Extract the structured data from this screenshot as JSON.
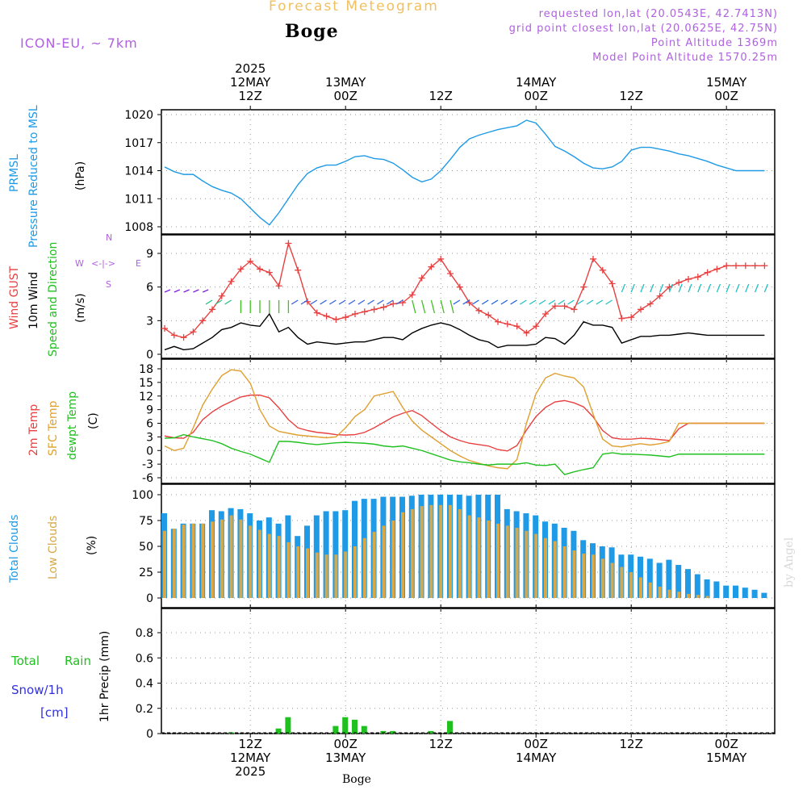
{
  "header": {
    "title": "Forecast Meteogram",
    "location": "Boge",
    "model": "ICON-EU, ~ 7km",
    "requested": "requested lon,lat (20.0543E, 42.7413N)",
    "grid_point": "grid point closest lon,lat (20.0625E, 42.75N)",
    "point_altitude": "Point Altitude 1369m",
    "model_altitude": "Model Point Altitude 1570.25m"
  },
  "time_axis": {
    "top_ticks": [
      {
        "lines": [
          "2025",
          "12MAY",
          "12Z"
        ]
      },
      {
        "lines": [
          "13MAY",
          "00Z"
        ]
      },
      {
        "lines": [
          "12Z"
        ]
      },
      {
        "lines": [
          "14MAY",
          "00Z"
        ]
      },
      {
        "lines": [
          "12Z"
        ]
      },
      {
        "lines": [
          "15MAY",
          "00Z"
        ]
      }
    ],
    "bottom_ticks": [
      {
        "lines": [
          "12Z",
          "12MAY",
          "2025"
        ]
      },
      {
        "lines": [
          "00Z",
          "13MAY"
        ]
      },
      {
        "lines": [
          "12Z"
        ]
      },
      {
        "lines": [
          "00Z",
          "14MAY"
        ]
      },
      {
        "lines": [
          "12Z"
        ]
      },
      {
        "lines": [
          "00Z",
          "15MAY"
        ]
      }
    ],
    "footer_label": "Boge"
  },
  "panel_labels": {
    "pressure": [
      "PRMSL",
      "Pressure Reduced to MSL",
      "(hPa)"
    ],
    "wind": [
      "Wind GUST",
      "10m Wind",
      "Speed and Direction",
      "(m/s)"
    ],
    "compass": {
      "w": "W",
      "e": "E",
      "n": "N",
      "s": "S",
      "arrow": "<-|->"
    },
    "temp": [
      "2m Temp",
      "SFC Temp",
      "dewpt Temp",
      "(C)"
    ],
    "clouds": [
      "Total Clouds",
      "Low Clouds",
      "(%)"
    ],
    "precip": [
      "1hr Precip (mm)"
    ],
    "precip_legend": [
      "Total",
      "Rain",
      "Snow/1h",
      "[cm]"
    ]
  },
  "watermark": "by Angel",
  "colors": {
    "pressure": "#1e9ae6",
    "gust": "#e84040",
    "wind10m": "#000000",
    "temp2m": "#e84040",
    "sfc": "#e0a030",
    "dewpt": "#20c020",
    "total_clouds": "#1e9ae6",
    "low_clouds": "#d8a848",
    "rain": "#20c020",
    "snow": "#3030e0",
    "model": "#b060e0",
    "title": "#f0c060",
    "grid": "#999999"
  },
  "chart_data": [
    {
      "type": "line",
      "panel": "pressure",
      "ylim": [
        1008,
        1020
      ],
      "yticks": [
        1008,
        1011,
        1014,
        1017,
        1020
      ],
      "x_hours": [
        0,
        1,
        2,
        3,
        4,
        5,
        6,
        7,
        8,
        9,
        10,
        11,
        12,
        13,
        14,
        15,
        16,
        17,
        18,
        19,
        20,
        21,
        22,
        23,
        24,
        25,
        26,
        27,
        28,
        29,
        30,
        31,
        32,
        33,
        34,
        35,
        36,
        37,
        38,
        39,
        40,
        41,
        42,
        43,
        44,
        45,
        46,
        47,
        48,
        49,
        50,
        51,
        52,
        53,
        54,
        55,
        56,
        57,
        58,
        59,
        60,
        61,
        62,
        63,
        64
      ],
      "series": [
        {
          "values": [
            1014.4,
            1013.9,
            1013.6,
            1013.6,
            1012.9,
            1012.3,
            1011.9,
            1011.6,
            1011.0,
            1010.0,
            1009.0,
            1008.2,
            1009.5,
            1011.0,
            1012.5,
            1013.7,
            1014.3,
            1014.6,
            1014.6,
            1015.0,
            1015.5,
            1015.6,
            1015.3,
            1015.2,
            1014.8,
            1014.1,
            1013.3,
            1012.8,
            1013.1,
            1014.0,
            1015.2,
            1016.5,
            1017.4,
            1017.8,
            1018.1,
            1018.4,
            1018.6,
            1018.8,
            1019.4,
            1019.1,
            1017.9,
            1016.6,
            1016.1,
            1015.5,
            1014.8,
            1014.3,
            1014.2,
            1014.4,
            1015.0,
            1016.2,
            1016.5,
            1016.5,
            1016.3,
            1016.1,
            1015.8,
            1015.6,
            1015.3,
            1015.0,
            1014.6,
            1014.3,
            1014.0,
            1014.0,
            1014.0,
            1014.0,
            1014.0
          ]
        }
      ]
    },
    {
      "type": "line",
      "panel": "wind",
      "ylim": [
        0,
        10
      ],
      "yticks": [
        0,
        3,
        6,
        9
      ],
      "x_hours": [
        0,
        1,
        2,
        3,
        4,
        5,
        6,
        7,
        8,
        9,
        10,
        11,
        12,
        13,
        14,
        15,
        16,
        17,
        18,
        19,
        20,
        21,
        22,
        23,
        24,
        25,
        26,
        27,
        28,
        29,
        30,
        31,
        32,
        33,
        34,
        35,
        36,
        37,
        38,
        39,
        40,
        41,
        42,
        43,
        44,
        45,
        46,
        47,
        48,
        49,
        50,
        51,
        52,
        53,
        54,
        55,
        56,
        57,
        58,
        59,
        60,
        61,
        62,
        63,
        64
      ],
      "series": [
        {
          "name": "Wind GUST",
          "values": [
            2.3,
            1.7,
            1.5,
            2.0,
            3.0,
            4.0,
            5.2,
            6.5,
            7.6,
            8.3,
            7.6,
            7.3,
            6.1,
            9.9,
            7.5,
            4.7,
            3.7,
            3.4,
            3.1,
            3.3,
            3.6,
            3.8,
            4.0,
            4.2,
            4.5,
            4.6,
            5.3,
            6.8,
            7.8,
            8.5,
            7.2,
            6.0,
            4.6,
            3.9,
            3.5,
            2.9,
            2.7,
            2.5,
            1.9,
            2.5,
            3.6,
            4.3,
            4.3,
            4.0,
            6.0,
            8.5,
            7.5,
            6.3,
            3.2,
            3.3,
            4.0,
            4.5,
            5.2,
            6.0,
            6.4,
            6.7,
            6.9,
            7.3,
            7.6,
            7.9,
            7.9,
            7.9,
            7.9,
            7.9,
            7.9
          ]
        },
        {
          "name": "10m Wind",
          "values": [
            0.4,
            0.7,
            0.4,
            0.5,
            1.0,
            1.5,
            2.2,
            2.4,
            2.8,
            2.6,
            2.5,
            3.6,
            2.0,
            2.4,
            1.5,
            0.9,
            1.1,
            1.0,
            0.9,
            1.0,
            1.1,
            1.1,
            1.3,
            1.5,
            1.5,
            1.3,
            1.9,
            2.3,
            2.6,
            2.8,
            2.6,
            2.2,
            1.7,
            1.3,
            1.1,
            0.6,
            0.8,
            0.8,
            0.8,
            0.9,
            1.5,
            1.4,
            0.9,
            1.7,
            2.9,
            2.6,
            2.6,
            2.4,
            1.0,
            1.3,
            1.6,
            1.6,
            1.7,
            1.7,
            1.8,
            1.9,
            1.8,
            1.7,
            1.7,
            1.7,
            1.7,
            1.7,
            1.7,
            1.7,
            1.7
          ]
        }
      ]
    },
    {
      "type": "line",
      "panel": "temperature",
      "ylim": [
        -6,
        18
      ],
      "yticks": [
        -6,
        -3,
        0,
        3,
        6,
        9,
        12,
        15,
        18
      ],
      "x_hours": [
        0,
        1,
        2,
        3,
        4,
        5,
        6,
        7,
        8,
        9,
        10,
        11,
        12,
        13,
        14,
        15,
        16,
        17,
        18,
        19,
        20,
        21,
        22,
        23,
        24,
        25,
        26,
        27,
        28,
        29,
        30,
        31,
        32,
        33,
        34,
        35,
        36,
        37,
        38,
        39,
        40,
        41,
        42,
        43,
        44,
        45,
        46,
        47,
        48,
        49,
        50,
        51,
        52,
        53,
        54,
        55,
        56,
        57,
        58,
        59,
        60,
        61,
        62,
        63,
        64
      ],
      "series": [
        {
          "name": "2m Temp",
          "values": [
            3.2,
            2.8,
            2.7,
            4.0,
            6.8,
            8.5,
            9.8,
            10.8,
            11.8,
            12.2,
            12.2,
            11.6,
            9.4,
            6.8,
            5.0,
            4.4,
            4.0,
            3.8,
            3.5,
            3.4,
            3.5,
            4.0,
            5.0,
            6.2,
            7.4,
            8.2,
            8.8,
            7.7,
            6.0,
            4.4,
            3.0,
            2.2,
            1.6,
            1.3,
            1.0,
            0.2,
            -0.1,
            1.1,
            4.5,
            7.5,
            9.5,
            10.7,
            11.0,
            10.5,
            9.6,
            7.4,
            4.4,
            2.8,
            2.5,
            2.5,
            2.7,
            2.6,
            2.4,
            2.2,
            4.8,
            6.0,
            6.0,
            6.0,
            6.0,
            6.0,
            6.0,
            6.0,
            6.0,
            6.0,
            6.0
          ]
        },
        {
          "name": "SFC Temp",
          "values": [
            1.0,
            0.0,
            0.5,
            5.0,
            10.0,
            13.5,
            16.5,
            17.8,
            17.5,
            14.8,
            9.0,
            5.4,
            4.2,
            3.8,
            3.4,
            3.2,
            3.0,
            2.8,
            3.0,
            5.0,
            7.5,
            9.0,
            12.0,
            12.5,
            13.0,
            9.5,
            6.5,
            4.5,
            3.0,
            1.5,
            0.0,
            -1.2,
            -2.2,
            -2.8,
            -3.4,
            -3.8,
            -4.0,
            -2.0,
            6.0,
            12.5,
            16.0,
            17.0,
            16.4,
            16.0,
            14.0,
            8.0,
            2.5,
            1.0,
            0.8,
            1.2,
            1.5,
            1.2,
            1.5,
            2.0,
            6.0,
            6.0,
            6.0,
            6.0,
            6.0,
            6.0,
            6.0,
            6.0,
            6.0,
            6.0,
            6.0
          ]
        },
        {
          "name": "dewpt Temp",
          "values": [
            2.7,
            2.8,
            3.5,
            3.0,
            2.6,
            2.2,
            1.5,
            0.5,
            -0.2,
            -0.8,
            -1.7,
            -2.6,
            2.0,
            2.0,
            1.8,
            1.5,
            1.3,
            1.5,
            1.7,
            1.8,
            1.7,
            1.6,
            1.4,
            1.0,
            0.8,
            1.0,
            0.5,
            0.0,
            -0.7,
            -1.4,
            -2.1,
            -2.5,
            -2.7,
            -3.0,
            -3.2,
            -3.0,
            -3.0,
            -3.0,
            -2.7,
            -3.2,
            -3.3,
            -3.0,
            -5.3,
            -4.7,
            -4.2,
            -3.8,
            -0.8,
            -0.5,
            -0.8,
            -0.8,
            -0.9,
            -1.0,
            -1.2,
            -1.4,
            -0.8,
            -0.8,
            -0.8,
            -0.8,
            -0.8,
            -0.8,
            -0.8,
            -0.8,
            -0.8,
            -0.8,
            -0.8
          ]
        }
      ]
    },
    {
      "type": "bar",
      "panel": "clouds",
      "ylim": [
        0,
        100
      ],
      "yticks": [
        0,
        25,
        50,
        75,
        100
      ],
      "x_hours": [
        0,
        1,
        2,
        3,
        4,
        5,
        6,
        7,
        8,
        9,
        10,
        11,
        12,
        13,
        14,
        15,
        16,
        17,
        18,
        19,
        20,
        21,
        22,
        23,
        24,
        25,
        26,
        27,
        28,
        29,
        30,
        31,
        32,
        33,
        34,
        35,
        36,
        37,
        38,
        39,
        40,
        41,
        42,
        43,
        44,
        45,
        46,
        47,
        48,
        49,
        50,
        51,
        52,
        53,
        54,
        55,
        56,
        57,
        58,
        59,
        60,
        61,
        62,
        63,
        64
      ],
      "series": [
        {
          "name": "Total Clouds",
          "values": [
            82,
            67,
            72,
            72,
            72,
            85,
            84,
            87,
            86,
            82,
            75,
            78,
            72,
            80,
            60,
            70,
            80,
            84,
            84,
            85,
            94,
            96,
            96,
            98,
            98,
            98,
            99,
            100,
            100,
            100,
            100,
            100,
            99,
            100,
            100,
            100,
            86,
            84,
            82,
            80,
            74,
            72,
            68,
            65,
            56,
            53,
            50,
            49,
            42,
            42,
            40,
            38,
            34,
            37,
            32,
            28,
            23,
            18,
            16,
            12,
            12,
            10,
            8,
            5,
            3
          ]
        },
        {
          "name": "Low Clouds",
          "values": [
            65,
            67,
            71,
            72,
            72,
            74,
            76,
            80,
            76,
            70,
            66,
            62,
            60,
            54,
            50,
            48,
            44,
            42,
            42,
            45,
            50,
            58,
            64,
            70,
            75,
            83,
            86,
            89,
            90,
            90,
            90,
            86,
            80,
            78,
            75,
            72,
            70,
            68,
            65,
            62,
            58,
            55,
            50,
            46,
            43,
            42,
            38,
            34,
            30,
            25,
            20,
            15,
            11,
            8,
            6,
            4,
            3,
            2,
            1,
            1,
            1,
            1,
            1,
            1,
            1
          ]
        }
      ]
    },
    {
      "type": "bar",
      "panel": "precipitation",
      "ylim": [
        0,
        0.9
      ],
      "yticks": [
        0,
        0.2,
        0.4,
        0.6,
        0.8
      ],
      "x_hours": [
        7,
        12,
        13,
        18,
        19,
        20,
        21,
        23,
        24,
        28,
        30
      ],
      "series": [
        {
          "name": "Total Rain",
          "values": [
            0.01,
            0.04,
            0.13,
            0.06,
            0.13,
            0.11,
            0.06,
            0.02,
            0.02,
            0.02,
            0.1
          ]
        }
      ]
    }
  ]
}
